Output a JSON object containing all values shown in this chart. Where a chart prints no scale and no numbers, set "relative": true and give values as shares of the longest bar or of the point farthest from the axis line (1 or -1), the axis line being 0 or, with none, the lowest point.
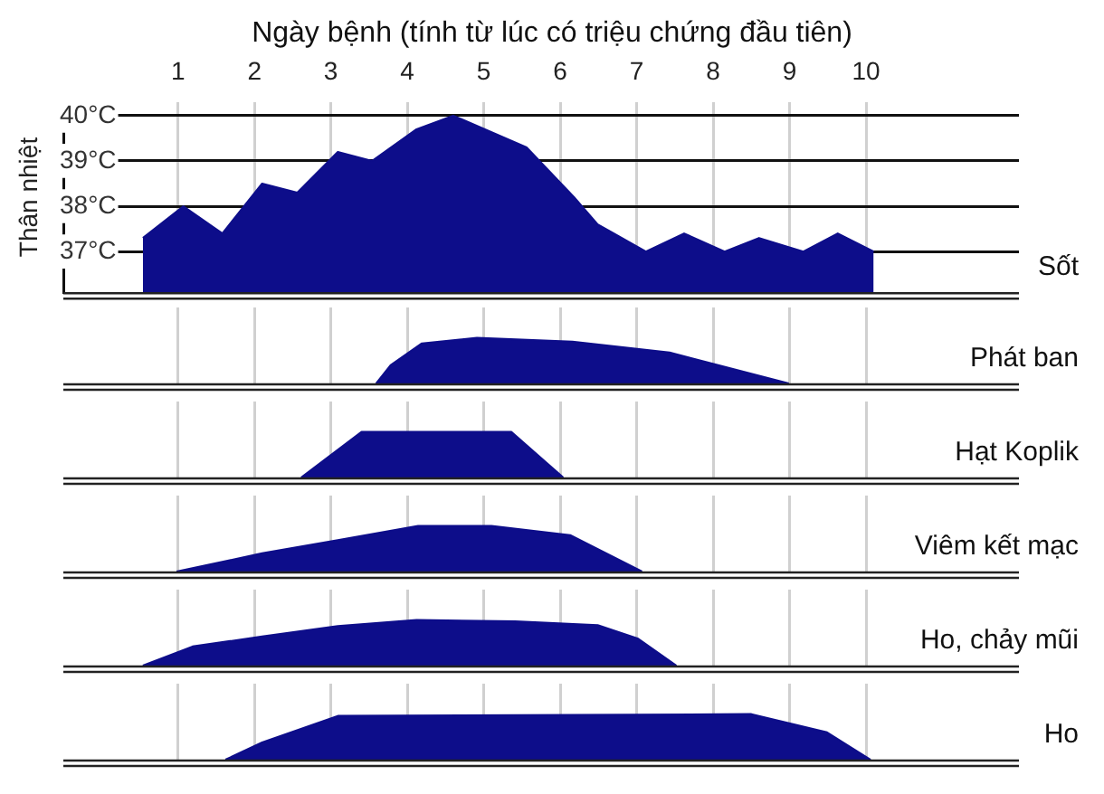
{
  "chart_data": [
    {
      "type": "area",
      "title": "Ngày bệnh (tính từ lúc có triệu chứng đầu tiên)",
      "ylabel": "Thân nhiệt",
      "xlim": [
        -0.5,
        12
      ],
      "xticks": [
        1,
        2,
        3,
        4,
        5,
        6,
        7,
        8,
        9,
        10
      ],
      "ylim": [
        36.1,
        40.3
      ],
      "yticks": [
        {
          "value": 37,
          "label": "37°C"
        },
        {
          "value": 38,
          "label": "38°C"
        },
        {
          "value": 39,
          "label": "39°C"
        },
        {
          "value": 40,
          "label": "40°C"
        }
      ],
      "grid": true,
      "series": [
        {
          "name": "Sốt",
          "color": "#0d0d8a",
          "x": [
            0.54,
            1.07,
            1.58,
            2.1,
            2.56,
            3.09,
            3.54,
            4.12,
            4.6,
            5.56,
            6.18,
            6.49,
            7.12,
            7.62,
            8.15,
            8.6,
            9.18,
            9.63,
            10.1
          ],
          "values": [
            37.3,
            38.0,
            37.4,
            38.5,
            38.3,
            39.2,
            39.0,
            39.7,
            40.0,
            39.3,
            38.2,
            37.6,
            37.0,
            37.4,
            37.0,
            37.3,
            37.0,
            37.4,
            37.0
          ]
        }
      ]
    },
    {
      "type": "area",
      "relative": true,
      "xlim": [
        -0.5,
        12
      ],
      "xticks": [
        1,
        2,
        3,
        4,
        5,
        6,
        7,
        8,
        9,
        10
      ],
      "tick_labels": false,
      "grid": "x",
      "series": [
        {
          "name": "Phát ban",
          "color": "#0d0d8a",
          "x": [
            3.59,
            3.78,
            4.19,
            4.91,
            6.16,
            7.43,
            8.99
          ],
          "values": [
            0,
            0.4,
            0.88,
            1,
            0.92,
            0.68,
            0
          ]
        }
      ]
    },
    {
      "type": "area",
      "relative": true,
      "xlim": [
        -0.5,
        12
      ],
      "xticks": [
        1,
        2,
        3,
        4,
        5,
        6,
        7,
        8,
        9,
        10
      ],
      "tick_labels": false,
      "grid": "x",
      "series": [
        {
          "name": "Hạt Koplik",
          "color": "#0d0d8a",
          "x": [
            2.61,
            3.4,
            5.36,
            6.04
          ],
          "values": [
            0,
            1,
            1,
            0
          ]
        }
      ]
    },
    {
      "type": "area",
      "relative": true,
      "xlim": [
        -0.5,
        12
      ],
      "xticks": [
        1,
        2,
        3,
        4,
        5,
        6,
        7,
        8,
        9,
        10
      ],
      "tick_labels": false,
      "grid": "x",
      "series": [
        {
          "name": "Viêm kết mạc",
          "color": "#0d0d8a",
          "x": [
            0.98,
            2.1,
            3.09,
            4.14,
            5.1,
            6.13,
            7.07
          ],
          "values": [
            0,
            0.4,
            0.69,
            1,
            1,
            0.8,
            0
          ]
        }
      ]
    },
    {
      "type": "area",
      "relative": true,
      "xlim": [
        -0.5,
        12
      ],
      "xticks": [
        1,
        2,
        3,
        4,
        5,
        6,
        7,
        8,
        9,
        10
      ],
      "tick_labels": false,
      "grid": "x",
      "series": [
        {
          "name": "Ho, chảy mũi",
          "color": "#0d0d8a",
          "x": [
            0.54,
            1.19,
            2.1,
            3.09,
            4.12,
            5.41,
            6.49,
            7.02,
            7.52
          ],
          "values": [
            0,
            0.42,
            0.64,
            0.87,
            1,
            0.97,
            0.89,
            0.59,
            0
          ]
        }
      ]
    },
    {
      "type": "area",
      "relative": true,
      "xlim": [
        -0.5,
        12
      ],
      "xticks": [
        1,
        2,
        3,
        4,
        5,
        6,
        7,
        8,
        9,
        10
      ],
      "tick_labels": false,
      "grid": "x",
      "series": [
        {
          "name": "Ho",
          "color": "#0d0d8a",
          "x": [
            1.62,
            2.1,
            3.09,
            8.5,
            9.49,
            10.06
          ],
          "values": [
            0,
            0.38,
            0.96,
            1,
            0.6,
            0
          ]
        }
      ]
    }
  ]
}
